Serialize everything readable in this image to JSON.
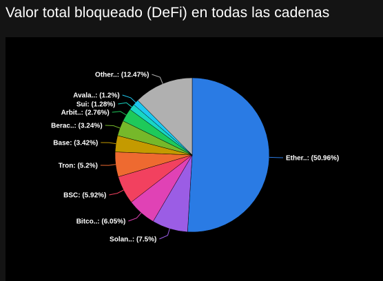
{
  "page": {
    "title": "Valor total bloqueado (DeFi) en todas las cadenas"
  },
  "chart_data": {
    "type": "pie",
    "title": "Valor total bloqueado (DeFi) en todas las cadenas",
    "slices": [
      {
        "label": "Ether..",
        "value": 50.96,
        "display": "Ether..: (50.96%)",
        "color": "#2a7be4"
      },
      {
        "label": "Solan..",
        "value": 7.5,
        "display": "Solan..: (7.5%)",
        "color": "#9b5de5"
      },
      {
        "label": "Bitco..",
        "value": 6.05,
        "display": "Bitco..: (6.05%)",
        "color": "#e042b5"
      },
      {
        "label": "BSC",
        "value": 5.92,
        "display": "BSC: (5.92%)",
        "color": "#f2415f"
      },
      {
        "label": "Tron",
        "value": 5.2,
        "display": "Tron: (5.2%)",
        "color": "#ee6a30"
      },
      {
        "label": "Base",
        "value": 3.42,
        "display": "Base: (3.42%)",
        "color": "#c49a00"
      },
      {
        "label": "Berac..",
        "value": 3.24,
        "display": "Berac..: (3.24%)",
        "color": "#76b82a"
      },
      {
        "label": "Arbit..",
        "value": 2.76,
        "display": "Arbit..: (2.76%)",
        "color": "#1ec95a"
      },
      {
        "label": "Sui",
        "value": 1.28,
        "display": "Sui: (1.28%)",
        "color": "#18d6c4"
      },
      {
        "label": "Avala..",
        "value": 1.2,
        "display": "Avala..: (1.2%)",
        "color": "#1ec8f0"
      },
      {
        "label": "Other..",
        "value": 12.47,
        "display": "Other..: (12.47%)",
        "color": "#b0b0b0"
      }
    ],
    "start_angle": "12 o'clock",
    "direction": "clockwise",
    "legend": "none"
  }
}
